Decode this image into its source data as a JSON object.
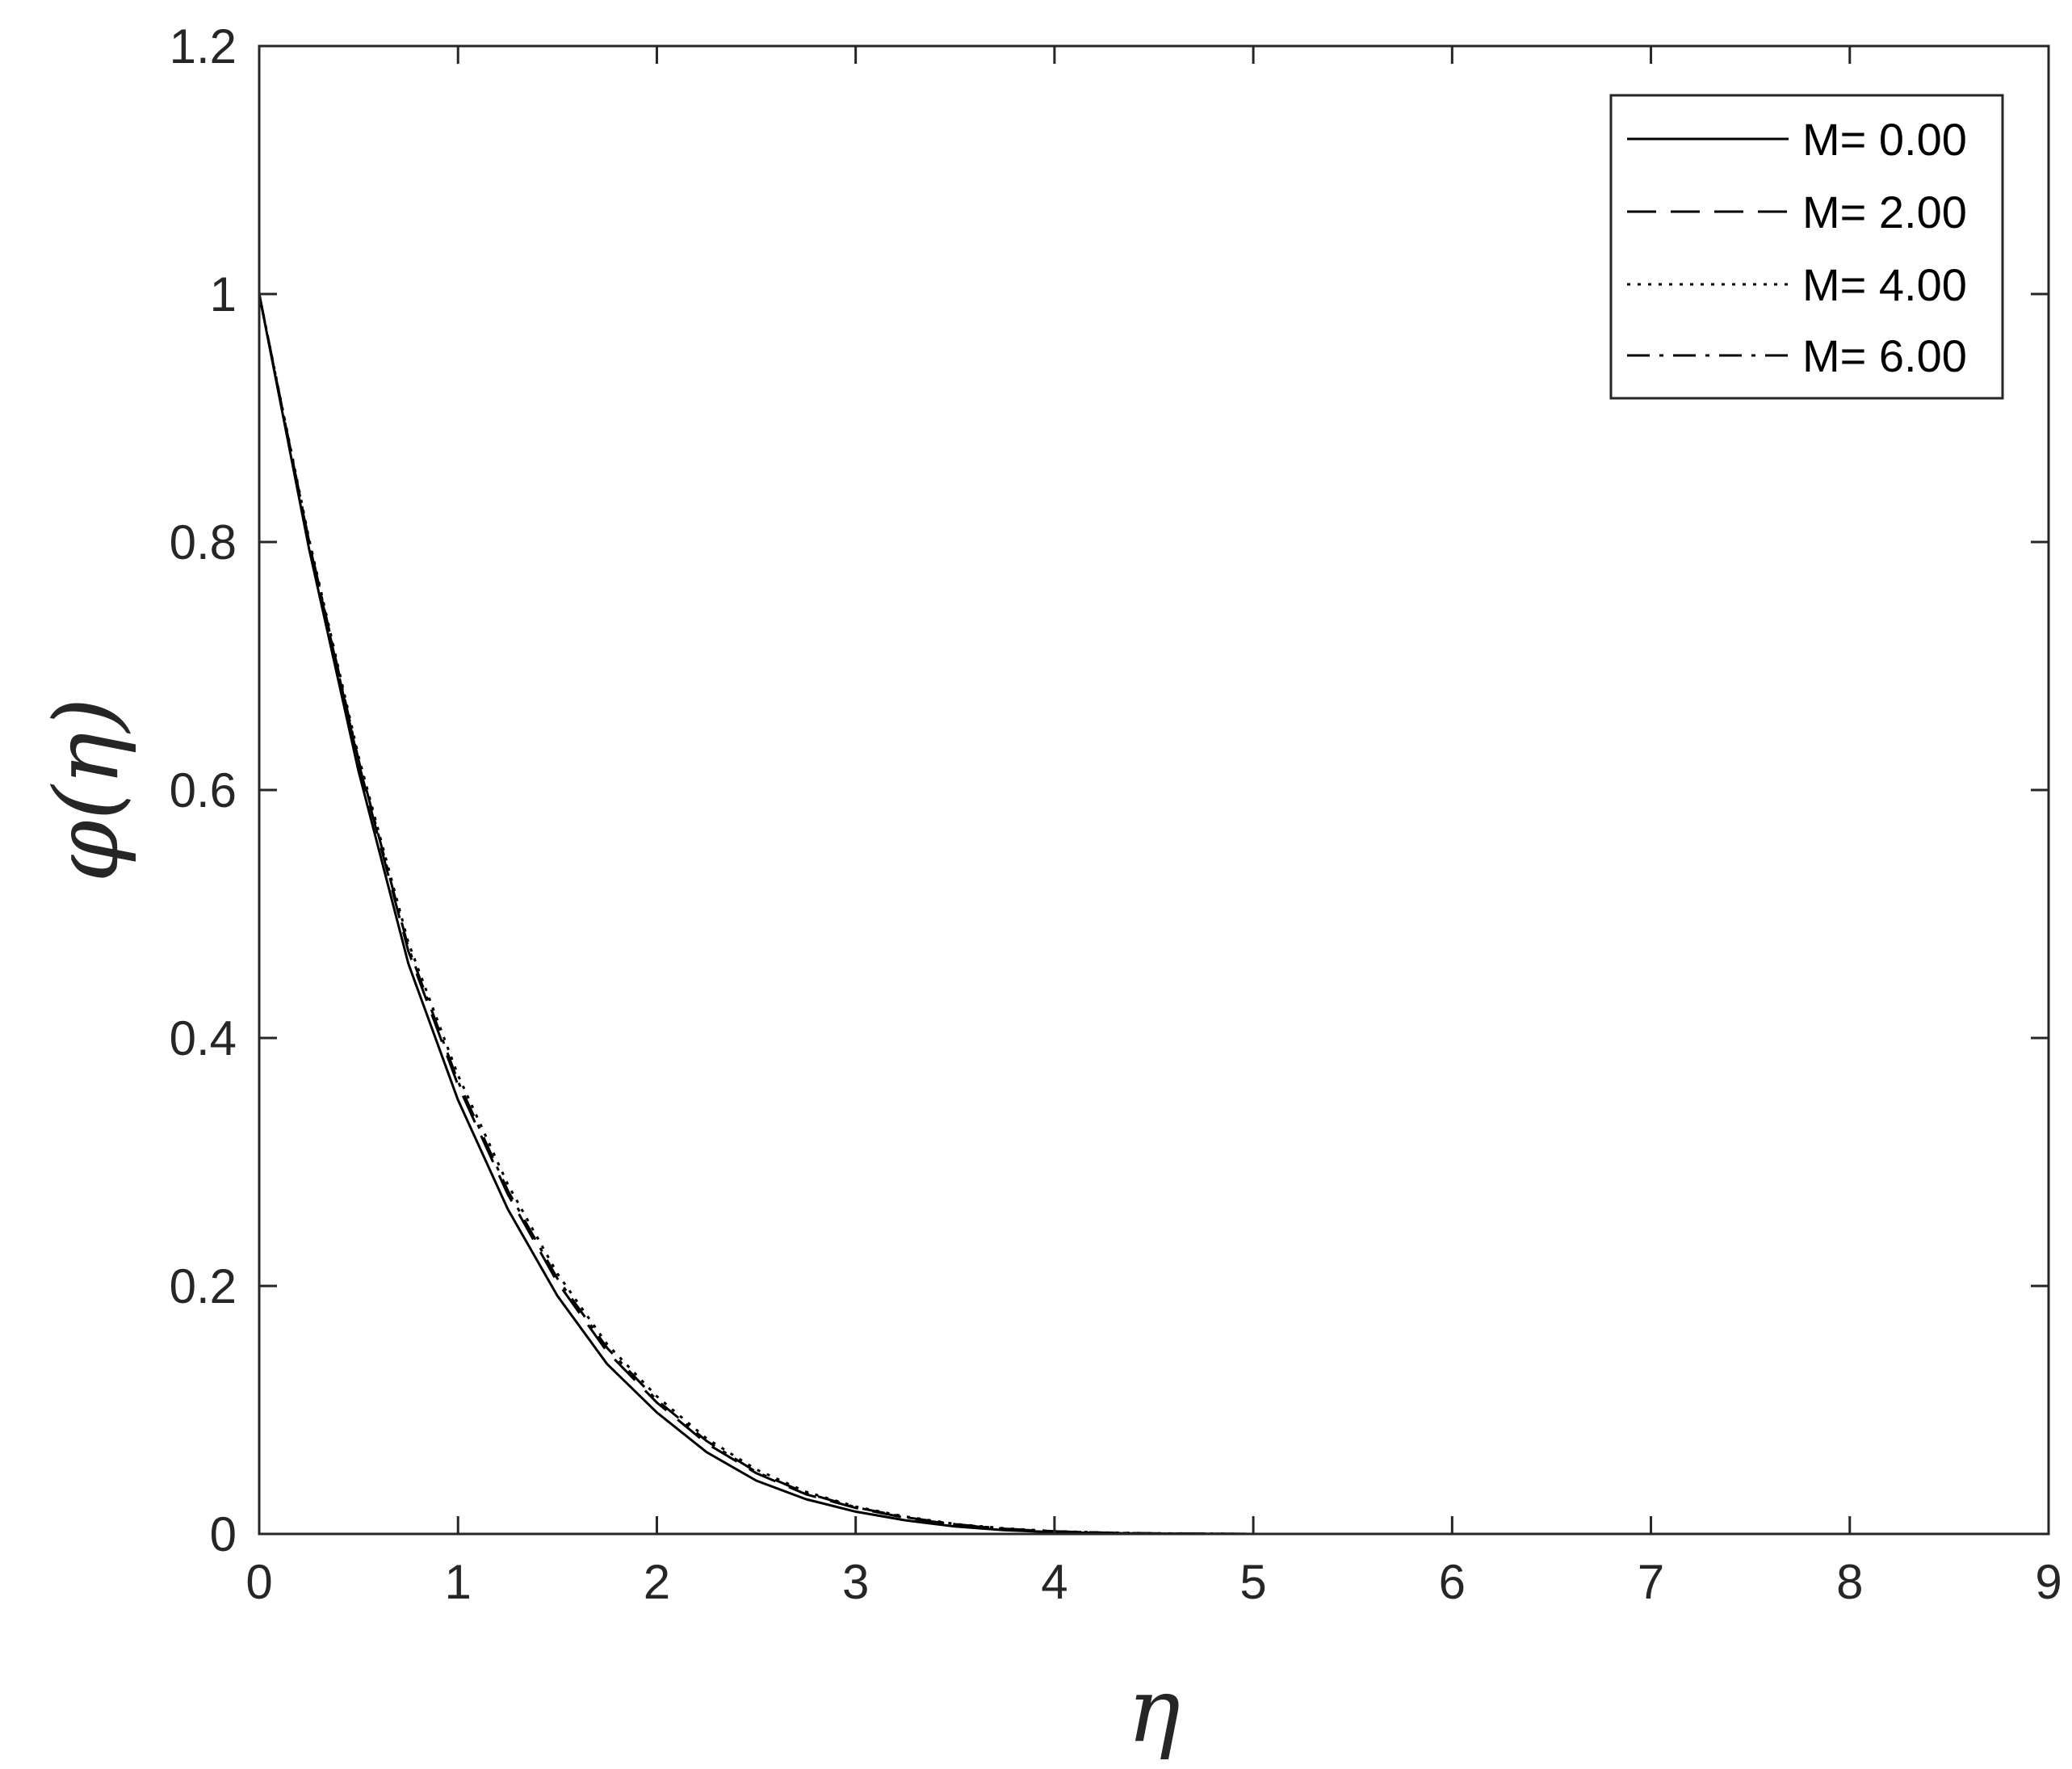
{
  "chart_data": {
    "type": "line",
    "title": "",
    "xlabel": "η",
    "ylabel": "φ(η)",
    "xlim": [
      0,
      9
    ],
    "ylim": [
      0,
      1.2
    ],
    "xticks": [
      "0",
      "1",
      "2",
      "3",
      "4",
      "5",
      "6",
      "7",
      "8",
      "9"
    ],
    "yticks": [
      "0",
      "0.2",
      "0.4",
      "0.6",
      "0.8",
      "1",
      "1.2"
    ],
    "grid": false,
    "legend_position": "top-right",
    "x": [
      0,
      0.25,
      0.5,
      0.75,
      1.0,
      1.25,
      1.5,
      1.75,
      2.0,
      2.25,
      2.5,
      2.75,
      3.0,
      3.25,
      3.5,
      3.75,
      4.0,
      4.25,
      4.5,
      5.0,
      6.0,
      7.0,
      8.0,
      9.0
    ],
    "series": [
      {
        "name": "M= 0.00",
        "style": "solid",
        "values": [
          1.0,
          0.795,
          0.615,
          0.46,
          0.35,
          0.262,
          0.192,
          0.137,
          0.098,
          0.066,
          0.043,
          0.028,
          0.018,
          0.011,
          0.006,
          0.003,
          0.0015,
          0.0007,
          0.0003,
          0.0,
          0.0,
          0.0,
          0.0,
          0.0
        ]
      },
      {
        "name": "M= 2.00",
        "style": "dashed",
        "values": [
          1.0,
          0.8,
          0.622,
          0.47,
          0.362,
          0.274,
          0.203,
          0.147,
          0.106,
          0.073,
          0.049,
          0.032,
          0.021,
          0.013,
          0.0075,
          0.004,
          0.002,
          0.001,
          0.0004,
          0.0,
          0.0,
          0.0,
          0.0,
          0.0
        ]
      },
      {
        "name": "M= 4.00",
        "style": "dotted",
        "values": [
          1.0,
          0.803,
          0.627,
          0.477,
          0.37,
          0.282,
          0.21,
          0.153,
          0.111,
          0.077,
          0.052,
          0.034,
          0.022,
          0.014,
          0.008,
          0.0045,
          0.0022,
          0.0011,
          0.0005,
          0.0,
          0.0,
          0.0,
          0.0,
          0.0
        ]
      },
      {
        "name": "M= 6.00",
        "style": "dashdot",
        "values": [
          1.0,
          0.801,
          0.624,
          0.473,
          0.365,
          0.277,
          0.206,
          0.15,
          0.108,
          0.075,
          0.05,
          0.033,
          0.0215,
          0.0135,
          0.0078,
          0.0042,
          0.0021,
          0.001,
          0.0004,
          0.0,
          0.0,
          0.0,
          0.0,
          0.0
        ]
      }
    ]
  }
}
